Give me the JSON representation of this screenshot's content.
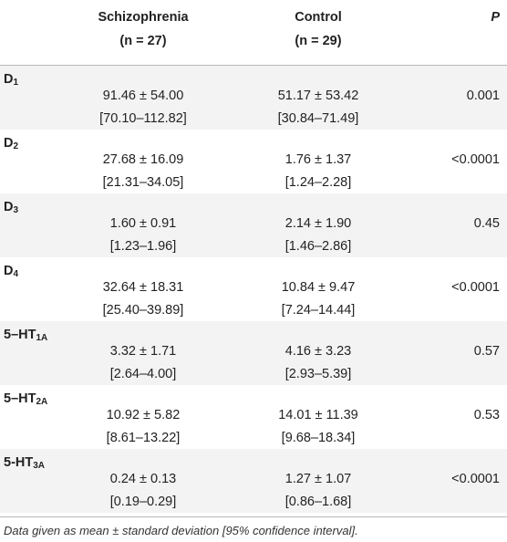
{
  "header": {
    "col1_name": "Schizophrenia",
    "col1_n": "(n = 27)",
    "col2_name": "Control",
    "col2_n": "(n = 29)",
    "col3": "P"
  },
  "rows": [
    {
      "base": "D",
      "sub": "1",
      "mean1": "91.46 ± 54.00",
      "ci1": "[70.10–112.82]",
      "mean2": "51.17 ± 53.42",
      "ci2": "[30.84–71.49]",
      "p": "0.001"
    },
    {
      "base": "D",
      "sub": "2",
      "mean1": "27.68 ± 16.09",
      "ci1": "[21.31–34.05]",
      "mean2": "1.76 ± 1.37",
      "ci2": "[1.24–2.28]",
      "p": "<0.0001"
    },
    {
      "base": "D",
      "sub": "3",
      "mean1": "1.60 ± 0.91",
      "ci1": "[1.23–1.96]",
      "mean2": "2.14 ± 1.90",
      "ci2": "[1.46–2.86]",
      "p": "0.45"
    },
    {
      "base": "D",
      "sub": "4",
      "mean1": "32.64 ± 18.31",
      "ci1": "[25.40–39.89]",
      "mean2": "10.84 ± 9.47",
      "ci2": "[7.24–14.44]",
      "p": "<0.0001"
    },
    {
      "base": "5–HT",
      "sub": "1A",
      "mean1": "3.32 ± 1.71",
      "ci1": "[2.64–4.00]",
      "mean2": "4.16 ± 3.23",
      "ci2": "[2.93–5.39]",
      "p": "0.57"
    },
    {
      "base": "5–HT",
      "sub": "2A",
      "mean1": "10.92 ± 5.82",
      "ci1": "[8.61–13.22]",
      "mean2": "14.01 ± 11.39",
      "ci2": "[9.68–18.34]",
      "p": "0.53"
    },
    {
      "base": "5-HT",
      "sub": "3A",
      "mean1": "0.24 ± 0.13",
      "ci1": "[0.19–0.29]",
      "mean2": "1.27 ± 1.07",
      "ci2": "[0.86–1.68]",
      "p": "<0.0001"
    }
  ],
  "footnote": "Data given as mean ± standard deviation [95% confidence interval].",
  "colors": {
    "stripe": "#f3f3f3",
    "rule": "#b8b8b8",
    "text": "#222222"
  }
}
